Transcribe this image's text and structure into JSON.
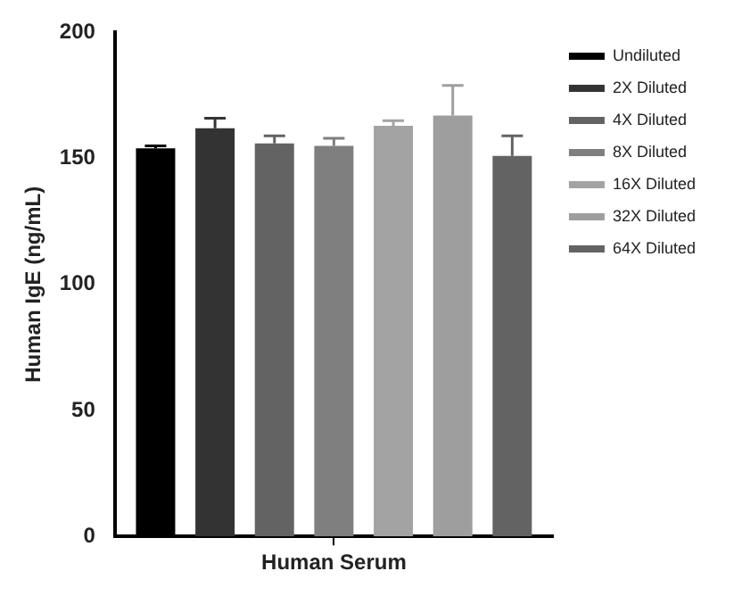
{
  "chart_data": {
    "type": "bar",
    "ylabel": "Human IgE (ng/mL)",
    "categories": [
      "Human Serum"
    ],
    "series": [
      {
        "name": "Undiluted",
        "color": "#000000",
        "values": [
          154
        ],
        "errors": [
          [
            154,
            155
          ]
        ]
      },
      {
        "name": "2X Diluted",
        "color": "#333333",
        "values": [
          162
        ],
        "errors": [
          [
            162,
            166
          ]
        ]
      },
      {
        "name": "4X Diluted",
        "color": "#636363",
        "values": [
          156
        ],
        "errors": [
          [
            156,
            159
          ]
        ]
      },
      {
        "name": "8X Diluted",
        "color": "#7f7f7f",
        "values": [
          155
        ],
        "errors": [
          [
            155,
            158
          ]
        ]
      },
      {
        "name": "16X Diluted",
        "color": "#a3a3a3",
        "values": [
          163
        ],
        "errors": [
          [
            163,
            165
          ]
        ]
      },
      {
        "name": "32X Diluted",
        "color": "#9e9e9e",
        "values": [
          167
        ],
        "errors": [
          [
            167,
            179
          ]
        ]
      },
      {
        "name": "64X Diluted",
        "color": "#636363",
        "values": [
          151
        ],
        "errors": [
          [
            151,
            159
          ]
        ]
      }
    ],
    "ylim": [
      0,
      200
    ],
    "yticks": [
      0,
      50,
      100,
      150,
      200
    ],
    "grid": false,
    "legend": "top right"
  }
}
